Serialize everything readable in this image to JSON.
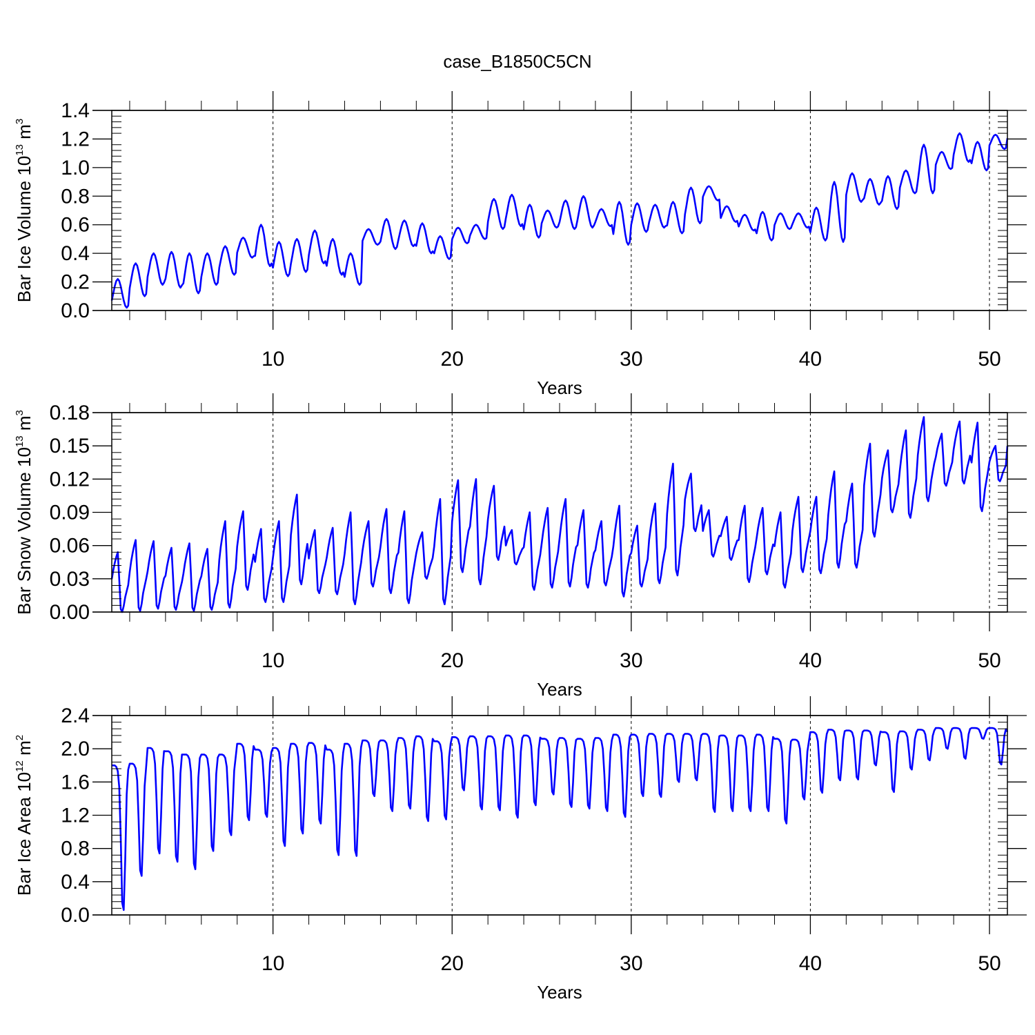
{
  "title": "case_B1850C5CN",
  "line_color": "#0000ff",
  "chart_data": [
    {
      "type": "line",
      "ylabel_parts": [
        "Bar Ice Volume 10",
        "13",
        " m",
        "3"
      ],
      "xlabel": "Years",
      "xlim": [
        1,
        51
      ],
      "ylim": [
        0,
        1.4
      ],
      "yticks": [
        "0.0",
        "0.2",
        "0.4",
        "0.6",
        "0.8",
        "1.0",
        "1.2",
        "1.4"
      ],
      "xticks": [
        "10",
        "20",
        "30",
        "40",
        "50"
      ],
      "grid": "vertical dashed at 10,20,30,40,50",
      "series": [
        {
          "name": "ice_volume",
          "description": "monthly values with seasonal cycle",
          "annual_max": [
            0.22,
            0.33,
            0.4,
            0.41,
            0.4,
            0.4,
            0.45,
            0.51,
            0.6,
            0.48,
            0.5,
            0.56,
            0.5,
            0.4,
            0.57,
            0.64,
            0.63,
            0.61,
            0.52,
            0.58,
            0.6,
            0.78,
            0.81,
            0.74,
            0.7,
            0.77,
            0.8,
            0.71,
            0.76,
            0.75,
            0.74,
            0.76,
            0.86,
            0.87,
            0.73,
            0.67,
            0.69,
            0.68,
            0.68,
            0.72,
            0.9,
            0.96,
            0.92,
            0.94,
            0.98,
            1.16,
            1.11,
            1.24,
            1.18,
            1.23
          ],
          "annual_min": [
            0.02,
            0.1,
            0.18,
            0.16,
            0.12,
            0.18,
            0.25,
            0.37,
            0.31,
            0.24,
            0.27,
            0.33,
            0.25,
            0.18,
            0.46,
            0.43,
            0.45,
            0.4,
            0.36,
            0.47,
            0.5,
            0.57,
            0.59,
            0.51,
            0.58,
            0.57,
            0.58,
            0.59,
            0.46,
            0.55,
            0.58,
            0.54,
            0.61,
            0.77,
            0.62,
            0.56,
            0.49,
            0.57,
            0.58,
            0.49,
            0.48,
            0.76,
            0.74,
            0.71,
            0.82,
            0.82,
            0.99,
            1.04,
            0.98,
            1.13
          ]
        }
      ]
    },
    {
      "type": "line",
      "ylabel_parts": [
        "Bar Snow Volume 10",
        "13",
        " m",
        "3"
      ],
      "xlabel": "Years",
      "xlim": [
        1,
        51
      ],
      "ylim": [
        0,
        0.18
      ],
      "yticks": [
        "0.00",
        "0.03",
        "0.06",
        "0.09",
        "0.12",
        "0.15",
        "0.18"
      ],
      "xticks": [
        "10",
        "20",
        "30",
        "40",
        "50"
      ],
      "grid": "vertical dashed at 10,20,30,40,50",
      "series": [
        {
          "name": "snow_volume",
          "description": "monthly values with seasonal cycle",
          "annual_max": [
            0.054,
            0.065,
            0.064,
            0.058,
            0.062,
            0.057,
            0.082,
            0.091,
            0.075,
            0.082,
            0.106,
            0.074,
            0.076,
            0.09,
            0.082,
            0.093,
            0.091,
            0.072,
            0.102,
            0.119,
            0.12,
            0.114,
            0.074,
            0.09,
            0.094,
            0.102,
            0.092,
            0.082,
            0.096,
            0.078,
            0.098,
            0.134,
            0.125,
            0.092,
            0.086,
            0.096,
            0.094,
            0.09,
            0.104,
            0.104,
            0.127,
            0.116,
            0.152,
            0.146,
            0.164,
            0.176,
            0.161,
            0.172,
            0.171,
            0.15
          ],
          "annual_min": [
            0.0,
            0.001,
            0.003,
            0.002,
            0.001,
            0.002,
            0.004,
            0.02,
            0.009,
            0.009,
            0.025,
            0.017,
            0.016,
            0.007,
            0.023,
            0.017,
            0.008,
            0.03,
            0.007,
            0.036,
            0.025,
            0.047,
            0.043,
            0.02,
            0.022,
            0.023,
            0.022,
            0.024,
            0.014,
            0.023,
            0.026,
            0.033,
            0.073,
            0.05,
            0.047,
            0.027,
            0.034,
            0.022,
            0.036,
            0.035,
            0.04,
            0.04,
            0.068,
            0.09,
            0.085,
            0.1,
            0.114,
            0.116,
            0.091,
            0.118
          ]
        }
      ]
    },
    {
      "type": "line",
      "ylabel_parts": [
        "Bar Ice Area 10",
        "12",
        " m",
        "2"
      ],
      "xlabel": "Years",
      "xlim": [
        1,
        51
      ],
      "ylim": [
        0,
        2.4
      ],
      "yticks": [
        "0.0",
        "0.4",
        "0.8",
        "1.2",
        "1.6",
        "2.0",
        "2.4"
      ],
      "xticks": [
        "10",
        "20",
        "30",
        "40",
        "50"
      ],
      "grid": "vertical dashed at 10,20,30,40,50",
      "series": [
        {
          "name": "ice_area",
          "description": "monthly values with seasonal cycle",
          "annual_max": [
            1.8,
            1.82,
            2.01,
            1.97,
            1.93,
            1.93,
            1.93,
            2.06,
            1.99,
            2.01,
            2.06,
            2.07,
            1.99,
            2.06,
            2.1,
            2.1,
            2.13,
            2.15,
            2.09,
            2.14,
            2.15,
            2.15,
            2.16,
            2.16,
            2.12,
            2.13,
            2.12,
            2.13,
            2.17,
            2.17,
            2.18,
            2.18,
            2.18,
            2.18,
            2.16,
            2.16,
            2.17,
            2.12,
            2.11,
            2.2,
            2.23,
            2.22,
            2.22,
            2.2,
            2.21,
            2.23,
            2.25,
            2.25,
            2.25,
            2.25
          ],
          "annual_min": [
            0.06,
            0.47,
            0.74,
            0.64,
            0.55,
            0.77,
            0.96,
            1.14,
            1.18,
            0.83,
            0.98,
            1.1,
            0.72,
            0.71,
            1.43,
            1.25,
            1.28,
            1.13,
            1.15,
            1.5,
            1.27,
            1.26,
            1.17,
            1.32,
            1.45,
            1.3,
            1.28,
            1.25,
            1.18,
            1.43,
            1.42,
            1.6,
            1.62,
            1.24,
            1.25,
            1.25,
            1.25,
            1.1,
            1.39,
            1.47,
            1.62,
            1.63,
            1.8,
            1.48,
            1.75,
            1.86,
            2.0,
            1.88,
            2.12,
            1.81
          ]
        }
      ]
    }
  ]
}
